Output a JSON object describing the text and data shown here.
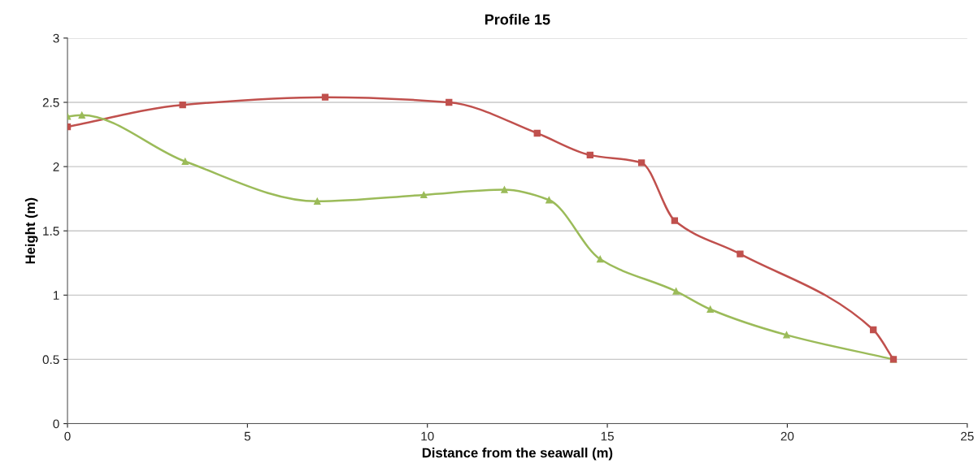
{
  "chart_data": {
    "type": "line",
    "title": "Profile 15",
    "xlabel": "Distance from the seawall (m)",
    "ylabel": "Height (m)",
    "xlim": [
      0,
      25
    ],
    "xticks": [
      0,
      5,
      10,
      15,
      20,
      25
    ],
    "ylim": [
      0,
      3
    ],
    "yticks": [
      0,
      0.5,
      1,
      1.5,
      2,
      2.5,
      3
    ],
    "grid": "y",
    "legend": false,
    "line_style": "solid",
    "series": [
      {
        "color": "#c0504d",
        "marker": "square",
        "x": [
          0,
          3.2,
          7.16,
          10.6,
          13.05,
          14.52,
          15.95,
          16.87,
          18.69,
          22.39,
          22.95
        ],
        "values": [
          2.31,
          2.48,
          2.54,
          2.5,
          2.26,
          2.09,
          2.03,
          1.58,
          1.32,
          0.73,
          0.5
        ]
      },
      {
        "color": "#9bbb59",
        "marker": "triangle",
        "x": [
          0,
          0.4,
          3.27,
          6.94,
          9.9,
          12.14,
          13.38,
          14.8,
          16.91,
          17.86,
          19.98,
          22.95
        ],
        "values": [
          2.39,
          2.4,
          2.04,
          1.73,
          1.78,
          1.82,
          1.74,
          1.28,
          1.03,
          0.89,
          0.69,
          0.5
        ]
      }
    ]
  }
}
